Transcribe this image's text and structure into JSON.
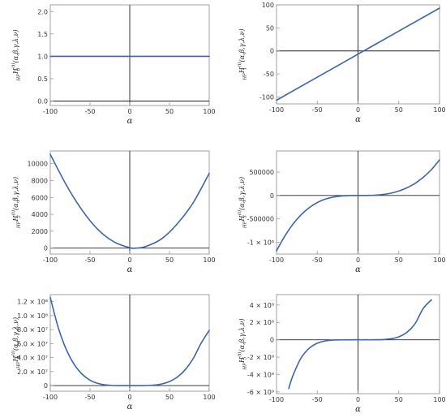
{
  "colors": {
    "curve": "#3b64ad"
  },
  "chart_data": [
    {
      "type": "line",
      "xlabel": "α",
      "ylabel": {
        "lead": "HF",
        "main": "H",
        "sup": "(i)",
        "sub": "0",
        "args": "(α,β,γ,λ,ν)"
      },
      "xlim": [
        -100,
        100
      ],
      "ylim": [
        -0.1,
        2.15
      ],
      "xticks": [
        -100,
        -50,
        0,
        50,
        100
      ],
      "yticks": [
        {
          "v": 0.0,
          "label": "0.0"
        },
        {
          "v": 0.5,
          "label": "0.5"
        },
        {
          "v": 1.0,
          "label": "1.0"
        },
        {
          "v": 1.5,
          "label": "1.5"
        },
        {
          "v": 2.0,
          "label": "2.0"
        }
      ],
      "series": [
        {
          "x": [
            -100,
            -50,
            0,
            50,
            100
          ],
          "y": [
            1,
            1,
            1,
            1,
            1
          ]
        }
      ]
    },
    {
      "type": "line",
      "xlabel": "α",
      "ylabel": {
        "lead": "HF",
        "main": "H",
        "sup": "(i)",
        "sub": "1",
        "args": "(α,β,γ,λ,ν)"
      },
      "xlim": [
        -100,
        100
      ],
      "ylim": [
        -115,
        100
      ],
      "xticks": [
        -100,
        -50,
        0,
        50,
        100
      ],
      "yticks": [
        {
          "v": -100,
          "label": "-100"
        },
        {
          "v": -50,
          "label": "-50"
        },
        {
          "v": 0,
          "label": "0"
        },
        {
          "v": 50,
          "label": "50"
        },
        {
          "v": 100,
          "label": "100"
        }
      ],
      "series": [
        {
          "x": [
            -100,
            -50,
            0,
            50,
            100
          ],
          "y": [
            -107,
            -57,
            -7,
            43,
            93
          ]
        }
      ]
    },
    {
      "type": "line",
      "xlabel": "α",
      "ylabel": {
        "lead": "HF",
        "main": "H",
        "sup": "(i)",
        "sub": "2",
        "args": "(α,β,γ,λ,ν)"
      },
      "xlim": [
        -100,
        100
      ],
      "ylim": [
        -700,
        11500
      ],
      "xticks": [
        -100,
        -50,
        0,
        50,
        100
      ],
      "yticks": [
        {
          "v": 0,
          "label": "0"
        },
        {
          "v": 2000,
          "label": "2000"
        },
        {
          "v": 4000,
          "label": "4000"
        },
        {
          "v": 6000,
          "label": "6000"
        },
        {
          "v": 8000,
          "label": "8000"
        },
        {
          "v": 10000,
          "label": "10000"
        }
      ],
      "series": [
        {
          "x": [
            -100,
            -80,
            -60,
            -40,
            -20,
            0,
            7,
            20,
            40,
            60,
            80,
            100
          ],
          "y": [
            11100,
            7500,
            4500,
            2200,
            750,
            50,
            0,
            190,
            1100,
            2900,
            5400,
            8850
          ]
        }
      ]
    },
    {
      "type": "line",
      "xlabel": "α",
      "ylabel": {
        "lead": "HF",
        "main": "H",
        "sup": "(i)",
        "sub": "3",
        "args": "(α,β,γ,λ,ν)"
      },
      "xlim": [
        -100,
        100
      ],
      "ylim": [
        -1250000,
        950000
      ],
      "xticks": [
        -100,
        -50,
        0,
        50,
        100
      ],
      "yticks": [
        {
          "v": -1000000,
          "label": "-1 × 10⁶"
        },
        {
          "v": -500000,
          "label": "-500000"
        },
        {
          "v": 0,
          "label": "0"
        },
        {
          "v": 500000,
          "label": "500000"
        }
      ],
      "series": [
        {
          "x": [
            -100,
            -90,
            -80,
            -70,
            -60,
            -50,
            -40,
            -30,
            -20,
            -10,
            0,
            10,
            20,
            30,
            40,
            50,
            60,
            70,
            80,
            90,
            100
          ],
          "y": [
            -1180000,
            -870000,
            -615000,
            -415000,
            -262000,
            -151000,
            -77700,
            -32500,
            -9700,
            -1300,
            0,
            700,
            5700,
            19800,
            47600,
            94000,
            163000,
            259000,
            387000,
            552000,
            760000
          ]
        }
      ]
    },
    {
      "type": "line",
      "xlabel": "α",
      "ylabel": {
        "lead": "HF",
        "main": "H",
        "sup": "(i)",
        "sub": "4",
        "args": "(α,β,γ,λ,ν)"
      },
      "xlim": [
        -100,
        100
      ],
      "ylim": [
        -8000000,
        130000000
      ],
      "xticks": [
        -100,
        -50,
        0,
        50,
        100
      ],
      "yticks": [
        {
          "v": 0,
          "label": "0"
        },
        {
          "v": 20000000,
          "label": "2.0 × 10⁷"
        },
        {
          "v": 40000000,
          "label": "4.0 × 10⁷"
        },
        {
          "v": 60000000,
          "label": "6.0 × 10⁷"
        },
        {
          "v": 80000000,
          "label": "8.0 × 10⁷"
        },
        {
          "v": 100000000,
          "label": "1.0 × 10⁸"
        },
        {
          "v": 120000000,
          "label": "1.2 × 10⁸"
        }
      ],
      "series": [
        {
          "x": [
            -100,
            -90,
            -80,
            -70,
            -60,
            -50,
            -40,
            -30,
            -20,
            -10,
            0,
            10,
            20,
            30,
            40,
            50,
            60,
            70,
            80,
            90,
            100
          ],
          "y": [
            126000000,
            83000000,
            52000000,
            30500000,
            16400000,
            7800000,
            3100000,
            940000,
            170000,
            11000,
            0,
            6500,
            120000,
            680000,
            2300000,
            5800000,
            12300000,
            23000000,
            39000000,
            61000000,
            79000000
          ]
        }
      ]
    },
    {
      "type": "line",
      "xlabel": "α",
      "ylabel": {
        "lead": "HF",
        "main": "H",
        "sup": "(i)",
        "sub": "5",
        "args": "(α,β,γ,λ,ν)"
      },
      "xlim": [
        -100,
        100
      ],
      "ylim": [
        -6200000000,
        5200000000
      ],
      "xticks": [
        -100,
        -50,
        0,
        50,
        100
      ],
      "yticks": [
        {
          "v": -6000000000,
          "label": "-6 × 10⁹"
        },
        {
          "v": -4000000000,
          "label": "-4 × 10⁹"
        },
        {
          "v": -2000000000,
          "label": "-2 × 10⁹"
        },
        {
          "v": 0,
          "label": "0"
        },
        {
          "v": 2000000000,
          "label": "2 × 10⁹"
        },
        {
          "v": 4000000000,
          "label": "4 × 10⁹"
        }
      ],
      "series": [
        {
          "x": [
            -85,
            -80,
            -70,
            -60,
            -50,
            -40,
            -30,
            -20,
            -10,
            0,
            10,
            20,
            30,
            40,
            50,
            60,
            70,
            80,
            90
          ],
          "y": [
            -5600000000,
            -4150000000,
            -2130000000,
            -985000000,
            -396000000,
            -130000000,
            -31000000,
            -4100000,
            -130000,
            0,
            110000,
            3500000,
            27000000,
            113000000,
            345000000,
            860000000,
            1860000000,
            3600000000,
            4600000000
          ]
        }
      ]
    }
  ]
}
